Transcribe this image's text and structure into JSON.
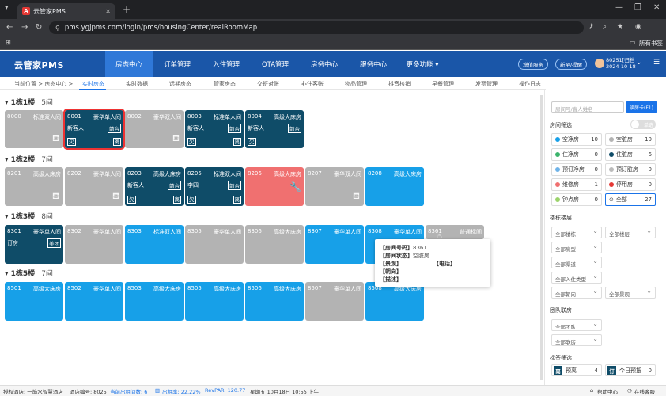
{
  "browser": {
    "tab_title": "云管家PMS",
    "tab_fav": "A",
    "url": "pms.ygjpms.com/login/pms/housingCenter/realRoomMap",
    "bookmarks_label": "所有书签"
  },
  "header": {
    "logo": "云管家PMS",
    "nav": [
      "房态中心",
      "订单管理",
      "入住管理",
      "OTA管理",
      "房务中心",
      "服务中心",
      "更多功能 ▾"
    ],
    "pills": [
      "增值服务",
      "新至/提醒"
    ],
    "user_id": "80251[归档",
    "user_date": "2024-10-18"
  },
  "subnav": {
    "breadcrumb": "当前位置 > 房态中心 >",
    "items": [
      "实时房态",
      "实时数据",
      "远期房态",
      "管家房态",
      "交班对账",
      "非住客账",
      "物品管理",
      "抖音核销",
      "早餐管理",
      "发票管理",
      "操作日志"
    ]
  },
  "floors": [
    {
      "name": "1栋1楼",
      "count": "5间"
    },
    {
      "name": "1栋2楼",
      "count": "7间"
    },
    {
      "name": "1栋3楼",
      "count": "8间"
    },
    {
      "name": "1栋5楼",
      "count": "7间"
    }
  ],
  "rooms": {
    "f1": [
      {
        "num": "8000",
        "type": "标准双人间"
      },
      {
        "num": "8001",
        "type": "豪华单人间",
        "guest": "新客人",
        "src": "前台",
        "b1": "欠",
        "b2": "离"
      },
      {
        "num": "8002",
        "type": "豪华双人间"
      },
      {
        "num": "8003",
        "type": "标准单人间",
        "guest": "新客人",
        "src": "前台",
        "b1": "欠",
        "b2": "离"
      },
      {
        "num": "8004",
        "type": "高级大床房",
        "guest": "新客人",
        "src": "前台",
        "b1": "欠"
      }
    ],
    "f2": [
      {
        "num": "8201",
        "type": "高级大床房"
      },
      {
        "num": "8202",
        "type": "豪华单人间"
      },
      {
        "num": "8203",
        "type": "高级大床房",
        "guest": "新客人",
        "src": "前台",
        "b1": "欠",
        "b2": "离"
      },
      {
        "num": "8205",
        "type": "标准双人间",
        "guest": "李四",
        "src": "前台",
        "b1": "欠",
        "b2": "离"
      },
      {
        "num": "8206",
        "type": "高级大床房"
      },
      {
        "num": "8207",
        "type": "豪华双人间"
      },
      {
        "num": "8208",
        "type": "高级大床房"
      }
    ],
    "f3": [
      {
        "num": "8301",
        "type": "豪华单人间",
        "guest": "订房",
        "src": "美团"
      },
      {
        "num": "8302",
        "type": "豪华单人间"
      },
      {
        "num": "8303",
        "type": "标准双人间"
      },
      {
        "num": "8305",
        "type": "豪华单人间"
      },
      {
        "num": "8306",
        "type": "高级大床房"
      },
      {
        "num": "8307",
        "type": "豪华单人间"
      },
      {
        "num": "8308",
        "type": "豪华单人间"
      },
      {
        "num": "8361",
        "type": "普通标间"
      }
    ],
    "f5": [
      {
        "num": "8501",
        "type": "高级大床房"
      },
      {
        "num": "8502",
        "type": "豪华单人间"
      },
      {
        "num": "8503",
        "type": "高级大床房"
      },
      {
        "num": "8505",
        "type": "高级大床房"
      },
      {
        "num": "8506",
        "type": "高级大床房"
      },
      {
        "num": "8507",
        "type": "豪华单人间"
      },
      {
        "num": "8508",
        "type": "高级大床房"
      }
    ]
  },
  "tooltip": {
    "room_no_label": "【房间号码】",
    "room_no": "8361",
    "status_label": "【房间状态】",
    "status": "空脏房",
    "view_label": "【景观】",
    "phone_label": "【电话】",
    "facing_label": "【朝向】",
    "desc_label": "【描述】"
  },
  "sidebar": {
    "search_placeholder": "房间号/客人姓名",
    "read_card": "读房卡(F1)",
    "room_filter": "房间筛选",
    "single_select": "单选",
    "filters": [
      {
        "label": "空净房",
        "value": "10",
        "color": "#17a0e8"
      },
      {
        "label": "空脏房",
        "value": "10",
        "color": "#b3b3b3"
      },
      {
        "label": "住净房",
        "value": "0",
        "color": "#3bb36b"
      },
      {
        "label": "住脏房",
        "value": "6",
        "color": "#0f4c68"
      },
      {
        "label": "预订净房",
        "value": "0",
        "color": "#6fb3e8"
      },
      {
        "label": "预订脏房",
        "value": "0",
        "color": "#bbbbbb"
      },
      {
        "label": "维修房",
        "value": "1",
        "color": "#f07070"
      },
      {
        "label": "停用房",
        "value": "0",
        "color": "#e53935"
      },
      {
        "label": "钟点房",
        "value": "0",
        "color": "#9bd36b"
      },
      {
        "label": "全部",
        "value": "27",
        "color": "#1a73e8"
      }
    ],
    "building_floor": "楼栋楼层",
    "dropdowns": [
      "全部楼栋",
      "全部楼层",
      "全部房型",
      "全部渠道",
      "全部入住类型",
      "全部朝向",
      "全部景观"
    ],
    "team": "团队联房",
    "team_dropdowns": [
      "全部团队",
      "全部联房"
    ],
    "tag_filter": "标签筛选",
    "tags": [
      {
        "badge": "离",
        "label": "预离",
        "value": "4"
      },
      {
        "badge": "订",
        "label": "今日预抵",
        "value": "0"
      }
    ]
  },
  "statusbar": {
    "store": "授权酒店: 一筋水智慧酒店",
    "store_no": "酒店编号: 8025",
    "cur_rooms": "当前出租间数: 6",
    "occ": "出租率: 22.22%",
    "revpar": "RevPAR: 120.77",
    "time": "星期五 10月18日 10:55 上午",
    "help": "帮助中心",
    "online": "在线客服"
  }
}
